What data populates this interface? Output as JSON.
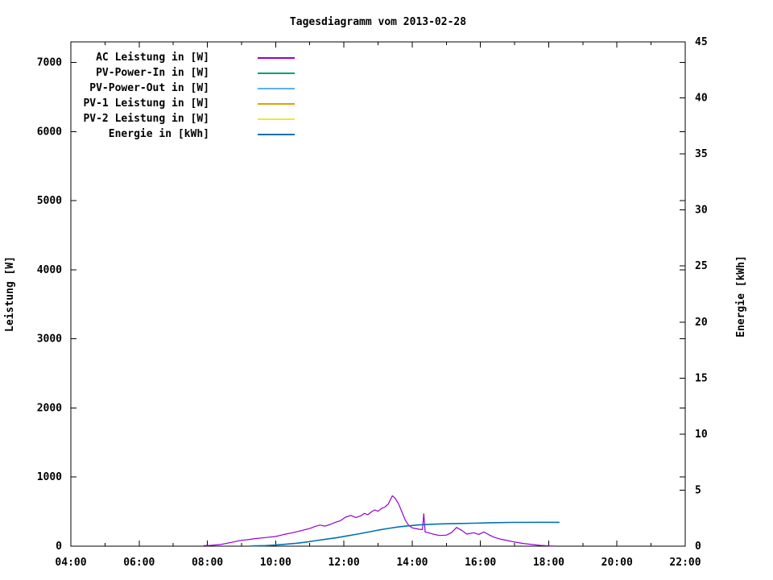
{
  "title": "Tagesdiagramm vom 2013-02-28",
  "chart_data": {
    "type": "line",
    "title": "Tagesdiagramm vom 2013-02-28",
    "grid": false,
    "legend_position": "top-left-inside",
    "x_range": [
      4,
      22
    ],
    "x_major_ticks": [
      {
        "h": 4,
        "label": "04:00"
      },
      {
        "h": 6,
        "label": "06:00"
      },
      {
        "h": 8,
        "label": "08:00"
      },
      {
        "h": 10,
        "label": "10:00"
      },
      {
        "h": 12,
        "label": "12:00"
      },
      {
        "h": 14,
        "label": "14:00"
      },
      {
        "h": 16,
        "label": "16:00"
      },
      {
        "h": 18,
        "label": "18:00"
      },
      {
        "h": 20,
        "label": "20:00"
      },
      {
        "h": 22,
        "label": "22:00"
      }
    ],
    "x_minor_hours": [
      5,
      7,
      9,
      11,
      13,
      15,
      17,
      19,
      21
    ],
    "y_left": {
      "label": "Leistung [W]",
      "max": 7300,
      "ticks": [
        0,
        1000,
        2000,
        3000,
        4000,
        5000,
        6000,
        7000
      ]
    },
    "y_right": {
      "label": "Energie [kWh]",
      "max": 45,
      "ticks": [
        0,
        5,
        10,
        15,
        20,
        25,
        30,
        35,
        40,
        45
      ]
    },
    "series": [
      {
        "name": "AC Leistung in [W]",
        "color": "#9400d3",
        "axis": "left",
        "points": [
          [
            7.9,
            8
          ],
          [
            8.1,
            12
          ],
          [
            8.4,
            25
          ],
          [
            8.7,
            55
          ],
          [
            9.0,
            85
          ],
          [
            9.2,
            95
          ],
          [
            9.4,
            110
          ],
          [
            9.7,
            125
          ],
          [
            10.0,
            140
          ],
          [
            10.25,
            170
          ],
          [
            10.5,
            195
          ],
          [
            10.75,
            225
          ],
          [
            11.0,
            255
          ],
          [
            11.15,
            285
          ],
          [
            11.3,
            305
          ],
          [
            11.45,
            290
          ],
          [
            11.6,
            315
          ],
          [
            11.75,
            345
          ],
          [
            11.9,
            370
          ],
          [
            12.05,
            420
          ],
          [
            12.2,
            445
          ],
          [
            12.35,
            415
          ],
          [
            12.5,
            440
          ],
          [
            12.6,
            475
          ],
          [
            12.7,
            455
          ],
          [
            12.8,
            495
          ],
          [
            12.9,
            525
          ],
          [
            13.0,
            505
          ],
          [
            13.1,
            545
          ],
          [
            13.2,
            565
          ],
          [
            13.3,
            610
          ],
          [
            13.42,
            730
          ],
          [
            13.5,
            695
          ],
          [
            13.6,
            615
          ],
          [
            13.7,
            495
          ],
          [
            13.8,
            375
          ],
          [
            13.9,
            300
          ],
          [
            14.0,
            265
          ],
          [
            14.1,
            255
          ],
          [
            14.2,
            245
          ],
          [
            14.3,
            240
          ],
          [
            14.34,
            470
          ],
          [
            14.38,
            205
          ],
          [
            14.5,
            190
          ],
          [
            14.65,
            170
          ],
          [
            14.8,
            155
          ],
          [
            15.0,
            160
          ],
          [
            15.15,
            195
          ],
          [
            15.3,
            270
          ],
          [
            15.45,
            230
          ],
          [
            15.6,
            175
          ],
          [
            15.8,
            195
          ],
          [
            15.95,
            170
          ],
          [
            16.1,
            205
          ],
          [
            16.25,
            165
          ],
          [
            16.4,
            130
          ],
          [
            16.6,
            100
          ],
          [
            16.8,
            80
          ],
          [
            17.0,
            60
          ],
          [
            17.25,
            40
          ],
          [
            17.5,
            25
          ],
          [
            17.75,
            12
          ],
          [
            18.0,
            5
          ],
          [
            18.15,
            2
          ]
        ]
      },
      {
        "name": "PV-Power-In in [W]",
        "color": "#009e73",
        "axis": "left",
        "points": []
      },
      {
        "name": "PV-Power-Out in [W]",
        "color": "#56b4e9",
        "axis": "left",
        "points": []
      },
      {
        "name": "PV-1 Leistung in [W]",
        "color": "#e69f00",
        "axis": "left",
        "points": []
      },
      {
        "name": "PV-2 Leistung in [W]",
        "color": "#f0e442",
        "axis": "left",
        "points": []
      },
      {
        "name": "Energie in [kWh]",
        "color": "#0072b2",
        "axis": "right",
        "points": [
          [
            9.3,
            0.02
          ],
          [
            9.7,
            0.05
          ],
          [
            10.0,
            0.1
          ],
          [
            10.3,
            0.17
          ],
          [
            10.6,
            0.26
          ],
          [
            10.9,
            0.37
          ],
          [
            11.2,
            0.5
          ],
          [
            11.5,
            0.63
          ],
          [
            11.8,
            0.76
          ],
          [
            12.1,
            0.92
          ],
          [
            12.4,
            1.08
          ],
          [
            12.7,
            1.25
          ],
          [
            13.0,
            1.43
          ],
          [
            13.3,
            1.58
          ],
          [
            13.6,
            1.72
          ],
          [
            13.9,
            1.82
          ],
          [
            14.2,
            1.9
          ],
          [
            14.5,
            1.95
          ],
          [
            14.9,
            1.99
          ],
          [
            15.3,
            2.02
          ],
          [
            15.8,
            2.05
          ],
          [
            16.3,
            2.09
          ],
          [
            16.9,
            2.12
          ],
          [
            17.6,
            2.13
          ],
          [
            18.3,
            2.13
          ]
        ]
      }
    ]
  }
}
